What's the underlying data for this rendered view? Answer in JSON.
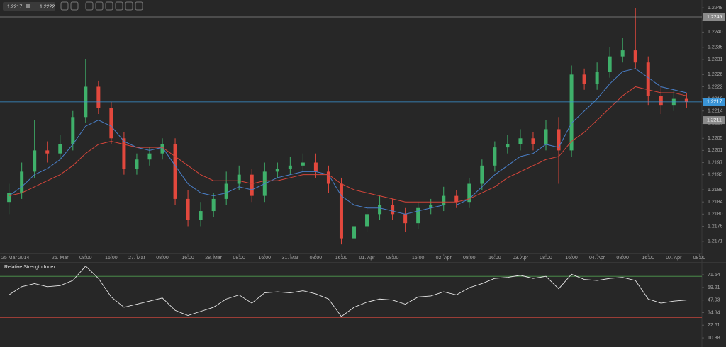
{
  "toolbar": {
    "bid": "1.2217",
    "ask": "1.2222"
  },
  "chart_data": [
    {
      "type": "candlestick",
      "open": [
        1.2184,
        1.2187,
        1.2194,
        1.2201,
        1.22,
        1.2203,
        1.2212,
        1.2222,
        1.2215,
        1.2205,
        1.2195,
        1.2198,
        1.22,
        1.2203,
        1.2185,
        1.2178,
        1.2181,
        1.2185,
        1.219,
        1.2193,
        1.2186,
        1.2194,
        1.2195,
        1.2196,
        1.2197,
        1.2194,
        1.219,
        1.2172,
        1.2176,
        1.218,
        1.2183,
        1.218,
        1.2177,
        1.2182,
        1.2183,
        1.2186,
        1.2184,
        1.219,
        1.2196,
        1.2202,
        1.2203,
        1.2205,
        1.2203,
        1.2208,
        1.2201,
        1.2226,
        1.2223,
        1.2227,
        1.2232,
        1.2234,
        1.223,
        1.2219,
        1.2216,
        1.2218
      ],
      "high": [
        1.219,
        1.2197,
        1.2211,
        1.2204,
        1.2206,
        1.2214,
        1.2231,
        1.2224,
        1.2217,
        1.2207,
        1.22,
        1.2202,
        1.2205,
        1.2205,
        1.2188,
        1.2184,
        1.2187,
        1.2194,
        1.2196,
        1.2195,
        1.2197,
        1.2197,
        1.2199,
        1.22,
        1.22,
        1.2196,
        1.2192,
        1.2179,
        1.2182,
        1.2186,
        1.2185,
        1.2182,
        1.2184,
        1.2185,
        1.2189,
        1.2188,
        1.2192,
        1.2198,
        1.2204,
        1.2206,
        1.2208,
        1.2207,
        1.2211,
        1.2212,
        1.2229,
        1.2228,
        1.223,
        1.2235,
        1.2238,
        1.2248,
        1.2232,
        1.2222,
        1.2221,
        1.222
      ],
      "low": [
        1.218,
        1.2185,
        1.2192,
        1.2197,
        1.2198,
        1.2201,
        1.221,
        1.2213,
        1.2203,
        1.2193,
        1.2193,
        1.2196,
        1.2198,
        1.2183,
        1.2176,
        1.2176,
        1.2179,
        1.2183,
        1.2188,
        1.2184,
        1.2184,
        1.2192,
        1.2193,
        1.2194,
        1.2192,
        1.2187,
        1.217,
        1.217,
        1.2174,
        1.2178,
        1.2178,
        1.2174,
        1.2175,
        1.218,
        1.2181,
        1.2182,
        1.2182,
        1.2188,
        1.2194,
        1.22,
        1.2201,
        1.2201,
        1.2201,
        1.219,
        1.2199,
        1.2221,
        1.2221,
        1.2225,
        1.223,
        1.2228,
        1.2216,
        1.2213,
        1.2214,
        1.2215
      ],
      "close": [
        1.2187,
        1.2194,
        1.2201,
        1.22,
        1.2203,
        1.2212,
        1.2222,
        1.2215,
        1.2205,
        1.2195,
        1.2198,
        1.22,
        1.2203,
        1.2185,
        1.2178,
        1.2181,
        1.2185,
        1.219,
        1.2193,
        1.2186,
        1.2194,
        1.2195,
        1.2196,
        1.2197,
        1.2194,
        1.219,
        1.2172,
        1.2176,
        1.218,
        1.2183,
        1.218,
        1.2177,
        1.2182,
        1.2183,
        1.2186,
        1.2184,
        1.219,
        1.2196,
        1.2202,
        1.2203,
        1.2205,
        1.2203,
        1.2208,
        1.2201,
        1.2226,
        1.2223,
        1.2227,
        1.2232,
        1.2234,
        1.223,
        1.2219,
        1.2216,
        1.2218,
        1.2217
      ],
      "up_color": "#3fb06a",
      "down_color": "#e2483d",
      "overlays": [
        {
          "color": "#4a7fc8",
          "values": [
            1.2186,
            1.2189,
            1.2193,
            1.2195,
            1.2198,
            1.2203,
            1.2209,
            1.2211,
            1.2209,
            1.2204,
            1.2202,
            1.2201,
            1.2202,
            1.2196,
            1.219,
            1.2187,
            1.2186,
            1.2187,
            1.2189,
            1.2188,
            1.219,
            1.2192,
            1.2193,
            1.2194,
            1.2194,
            1.2193,
            1.2186,
            1.2183,
            1.2182,
            1.2182,
            1.2181,
            1.218,
            1.2181,
            1.2182,
            1.2183,
            1.2183,
            1.2185,
            1.2189,
            1.2193,
            1.2196,
            1.2199,
            1.22,
            1.2203,
            1.2202,
            1.221,
            1.2214,
            1.2218,
            1.2223,
            1.2227,
            1.2228,
            1.2225,
            1.2222,
            1.2221,
            1.222
          ]
        },
        {
          "color": "#d4453a",
          "values": [
            1.2186,
            1.2187,
            1.2189,
            1.2191,
            1.2193,
            1.2196,
            1.22,
            1.2203,
            1.2204,
            1.2203,
            1.2202,
            1.2202,
            1.2202,
            1.2199,
            1.2196,
            1.2193,
            1.2191,
            1.2191,
            1.2191,
            1.219,
            1.2191,
            1.2191,
            1.2192,
            1.2193,
            1.2193,
            1.2193,
            1.219,
            1.2188,
            1.2187,
            1.2186,
            1.2185,
            1.2184,
            1.2184,
            1.2184,
            1.2184,
            1.2184,
            1.2185,
            1.2187,
            1.2189,
            1.2192,
            1.2194,
            1.2196,
            1.2198,
            1.2199,
            1.2204,
            1.2207,
            1.2211,
            1.2215,
            1.2219,
            1.2222,
            1.2221,
            1.222,
            1.222,
            1.2219
          ]
        }
      ],
      "xlim": [
        -0.7,
        54.2
      ],
      "xticks": [
        {
          "value": 0,
          "label": "25 Mar 2014"
        },
        {
          "value": 4,
          "label": "26. Mar"
        },
        {
          "value": 6,
          "label": "08:00"
        },
        {
          "value": 8,
          "label": "16:00"
        },
        {
          "value": 10,
          "label": "27. Mar"
        },
        {
          "value": 12,
          "label": "08:00"
        },
        {
          "value": 14,
          "label": "16:00"
        },
        {
          "value": 16,
          "label": "28. Mar"
        },
        {
          "value": 18,
          "label": "08:00"
        },
        {
          "value": 20,
          "label": "16:00"
        },
        {
          "value": 22,
          "label": "31. Mar"
        },
        {
          "value": 24,
          "label": "08:00"
        },
        {
          "value": 26,
          "label": "16:00"
        },
        {
          "value": 28,
          "label": "01. Apr"
        },
        {
          "value": 30,
          "label": "08:00"
        },
        {
          "value": 32,
          "label": "16:00"
        },
        {
          "value": 34,
          "label": "02. Apr"
        },
        {
          "value": 36,
          "label": "08:00"
        },
        {
          "value": 38,
          "label": "16:00"
        },
        {
          "value": 40,
          "label": "03. Apr"
        },
        {
          "value": 42,
          "label": "08:00"
        },
        {
          "value": 44,
          "label": "16:00"
        },
        {
          "value": 46,
          "label": "04. Apr"
        },
        {
          "value": 48,
          "label": "08:00"
        },
        {
          "value": 50,
          "label": "16:00"
        },
        {
          "value": 52,
          "label": "07. Apr"
        },
        {
          "value": 54,
          "label": "08:00"
        }
      ],
      "ylim": [
        1.2167,
        1.22506
      ],
      "yticks": [
        1.2171,
        1.2176,
        {
          "value": 1.218,
          "label": "1.2180"
        },
        1.2184,
        1.2188,
        1.2193,
        1.2197,
        1.2201,
        1.2205,
        {
          "value": 1.221,
          "label": "1.2210"
        },
        1.2214,
        1.2218,
        1.2222,
        1.2226,
        1.2231,
        1.2235,
        {
          "value": 1.224,
          "label": "1.2240"
        },
        1.2244,
        1.2248
      ],
      "levels": [
        {
          "value": 1.2245,
          "color": "#8a8a8a"
        },
        {
          "value": 1.2217,
          "color": "#3a94d6"
        },
        {
          "value": 1.2211,
          "color": "#8a8a8a"
        }
      ]
    },
    {
      "type": "line",
      "title": "Relative Strength Index",
      "color": "#e8e8e8",
      "values": [
        52,
        60,
        63,
        60,
        61,
        66,
        80,
        68,
        50,
        40,
        43,
        46,
        49,
        37,
        32,
        36,
        40,
        48,
        52,
        44,
        54,
        55,
        54,
        56,
        53,
        48,
        31,
        40,
        45,
        48,
        47,
        43,
        50,
        51,
        55,
        52,
        59,
        63,
        68,
        69,
        71,
        68,
        70,
        58,
        72,
        67,
        66,
        68,
        69,
        66,
        48,
        44,
        46,
        47
      ],
      "xlim": [
        -0.7,
        54.2
      ],
      "ylim": [
        1.5,
        82.5
      ],
      "yticks": [
        10.38,
        22.61,
        34.84,
        47.03,
        59.21,
        71.54
      ],
      "levels": [
        {
          "value": 70,
          "color": "#4f9a4f"
        },
        {
          "value": 30,
          "color": "#c2463c"
        }
      ]
    }
  ]
}
